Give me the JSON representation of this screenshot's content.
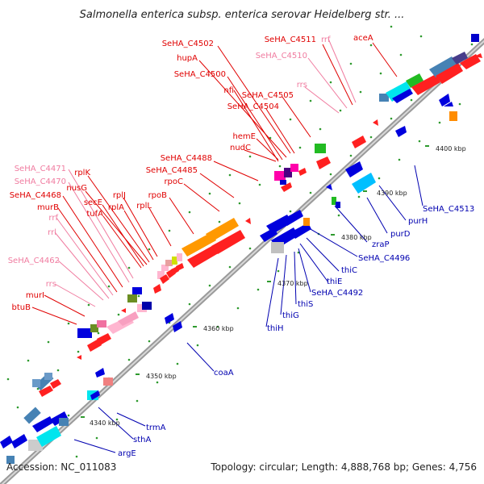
{
  "title": "Salmonella enterica subsp. enterica serovar Heidelberg str. ...",
  "accession": "Accession: NC_011083",
  "summary": "Topology: circular; Length: 4,888,768 bp; Genes: 4,756",
  "colors": {
    "backbone": "#8a8a8a",
    "label_red": "#e00000",
    "label_pink": "#f07ca0",
    "label_blue": "#0000b0",
    "tick": "#2e9a2e"
  },
  "tick_labels": [
    "4340 kbp",
    "4350 kbp",
    "4360 kbp",
    "4370 kbp",
    "4380 kbp",
    "4390 kbp",
    "4400 kbp"
  ],
  "top_labels": [
    {
      "text": "SeHA_C4502",
      "tone": "red"
    },
    {
      "text": "hupA",
      "tone": "red"
    },
    {
      "text": "SeHA_C4500",
      "tone": "red"
    },
    {
      "text": "nfi",
      "tone": "red"
    },
    {
      "text": "SeHA_C4505",
      "tone": "red"
    },
    {
      "text": "SeHA_C4504",
      "tone": "red"
    },
    {
      "text": "SeHA_C4511",
      "tone": "red"
    },
    {
      "text": "rrf",
      "tone": "pink"
    },
    {
      "text": "SeHA_C4510",
      "tone": "pink"
    },
    {
      "text": "rrs",
      "tone": "pink"
    },
    {
      "text": "aceA",
      "tone": "red"
    },
    {
      "text": "hemE",
      "tone": "red"
    },
    {
      "text": "nudC",
      "tone": "red"
    },
    {
      "text": "SeHA_C4488",
      "tone": "red"
    },
    {
      "text": "SeHA_C4485",
      "tone": "red"
    },
    {
      "text": "rpoC",
      "tone": "red"
    },
    {
      "text": "rpoB",
      "tone": "red"
    },
    {
      "text": "rplL",
      "tone": "red"
    },
    {
      "text": "rplJ",
      "tone": "red"
    },
    {
      "text": "rplA",
      "tone": "red"
    },
    {
      "text": "rplK",
      "tone": "red"
    },
    {
      "text": "nusG",
      "tone": "red"
    },
    {
      "text": "secE",
      "tone": "red"
    },
    {
      "text": "tufA",
      "tone": "red"
    },
    {
      "text": "SeHA_C4471",
      "tone": "pink"
    },
    {
      "text": "SeHA_C4470",
      "tone": "pink"
    },
    {
      "text": "SeHA_C4468",
      "tone": "red"
    },
    {
      "text": "murB",
      "tone": "red"
    },
    {
      "text": "rrf",
      "tone": "pink"
    },
    {
      "text": "rrl",
      "tone": "pink"
    },
    {
      "text": "SeHA_C4462",
      "tone": "pink"
    },
    {
      "text": "rrs",
      "tone": "pink"
    },
    {
      "text": "murI",
      "tone": "red"
    },
    {
      "text": "btuB",
      "tone": "red"
    }
  ],
  "bottom_labels": [
    {
      "text": "SeHA_C4513"
    },
    {
      "text": "purH"
    },
    {
      "text": "purD"
    },
    {
      "text": "zraP"
    },
    {
      "text": "SeHA_C4496"
    },
    {
      "text": "thiC"
    },
    {
      "text": "thiE"
    },
    {
      "text": "SeHA_C4492"
    },
    {
      "text": "thiS"
    },
    {
      "text": "thiG"
    },
    {
      "text": "thiH"
    },
    {
      "text": "coaA"
    },
    {
      "text": "trmA"
    },
    {
      "text": "sthA"
    },
    {
      "text": "argE"
    }
  ]
}
